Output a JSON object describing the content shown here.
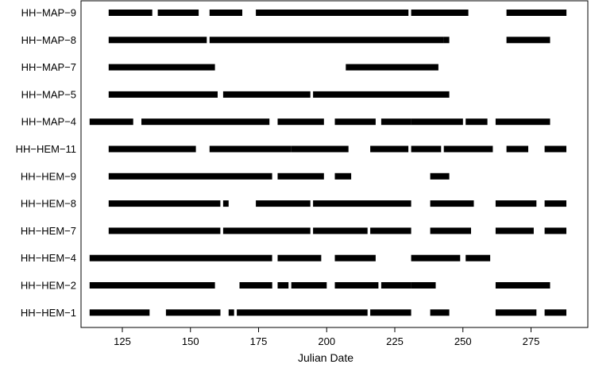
{
  "chart_data": {
    "type": "gantt",
    "title": "",
    "xlabel": "Julian Date",
    "ylabel": "",
    "xlim": [
      110,
      291
    ],
    "xticks": [
      125,
      150,
      175,
      200,
      225,
      250,
      275
    ],
    "rows": [
      {
        "label": "HH−MAP−9",
        "segments": [
          [
            120,
            136
          ],
          [
            138,
            153
          ],
          [
            157,
            169
          ],
          [
            174,
            230
          ],
          [
            231,
            252
          ],
          [
            266,
            288
          ]
        ]
      },
      {
        "label": "HH−MAP−8",
        "segments": [
          [
            120,
            156
          ],
          [
            157,
            243
          ],
          [
            243,
            245
          ],
          [
            266,
            282
          ]
        ]
      },
      {
        "label": "HH−MAP−7",
        "segments": [
          [
            120,
            159
          ],
          [
            207,
            241
          ]
        ]
      },
      {
        "label": "HH−MAP−5",
        "segments": [
          [
            120,
            160
          ],
          [
            162,
            194
          ],
          [
            195,
            245
          ]
        ]
      },
      {
        "label": "HH−MAP−4",
        "segments": [
          [
            113,
            129
          ],
          [
            132,
            179
          ],
          [
            182,
            199
          ],
          [
            203,
            218
          ],
          [
            220,
            231
          ],
          [
            231,
            250
          ],
          [
            251,
            259
          ],
          [
            262,
            282
          ]
        ]
      },
      {
        "label": "HH−HEM−11",
        "segments": [
          [
            120,
            152
          ],
          [
            157,
            187
          ],
          [
            187,
            208
          ],
          [
            216,
            230
          ],
          [
            231,
            242
          ],
          [
            243,
            261
          ],
          [
            266,
            274
          ],
          [
            280,
            288
          ]
        ]
      },
      {
        "label": "HH−HEM−9",
        "segments": [
          [
            120,
            180
          ],
          [
            182,
            199
          ],
          [
            203,
            209
          ],
          [
            238,
            245
          ]
        ]
      },
      {
        "label": "HH−HEM−8",
        "segments": [
          [
            120,
            161
          ],
          [
            162,
            164
          ],
          [
            174,
            194
          ],
          [
            195,
            231
          ],
          [
            238,
            254
          ],
          [
            262,
            277
          ],
          [
            280,
            288
          ]
        ]
      },
      {
        "label": "HH−HEM−7",
        "segments": [
          [
            120,
            161
          ],
          [
            162,
            194
          ],
          [
            195,
            215
          ],
          [
            216,
            231
          ],
          [
            238,
            253
          ],
          [
            262,
            276
          ],
          [
            280,
            288
          ]
        ]
      },
      {
        "label": "HH−HEM−4",
        "segments": [
          [
            113,
            180
          ],
          [
            182,
            198
          ],
          [
            203,
            218
          ],
          [
            231,
            249
          ],
          [
            251,
            260
          ]
        ]
      },
      {
        "label": "HH−HEM−2",
        "segments": [
          [
            113,
            159
          ],
          [
            168,
            180
          ],
          [
            182,
            186
          ],
          [
            187,
            200
          ],
          [
            203,
            219
          ],
          [
            220,
            231
          ],
          [
            231,
            240
          ],
          [
            262,
            282
          ]
        ]
      },
      {
        "label": "HH−HEM−1",
        "segments": [
          [
            113,
            135
          ],
          [
            141,
            161
          ],
          [
            164,
            166
          ],
          [
            167,
            215
          ],
          [
            216,
            231
          ],
          [
            238,
            245
          ],
          [
            262,
            277
          ],
          [
            280,
            288
          ]
        ]
      }
    ]
  }
}
